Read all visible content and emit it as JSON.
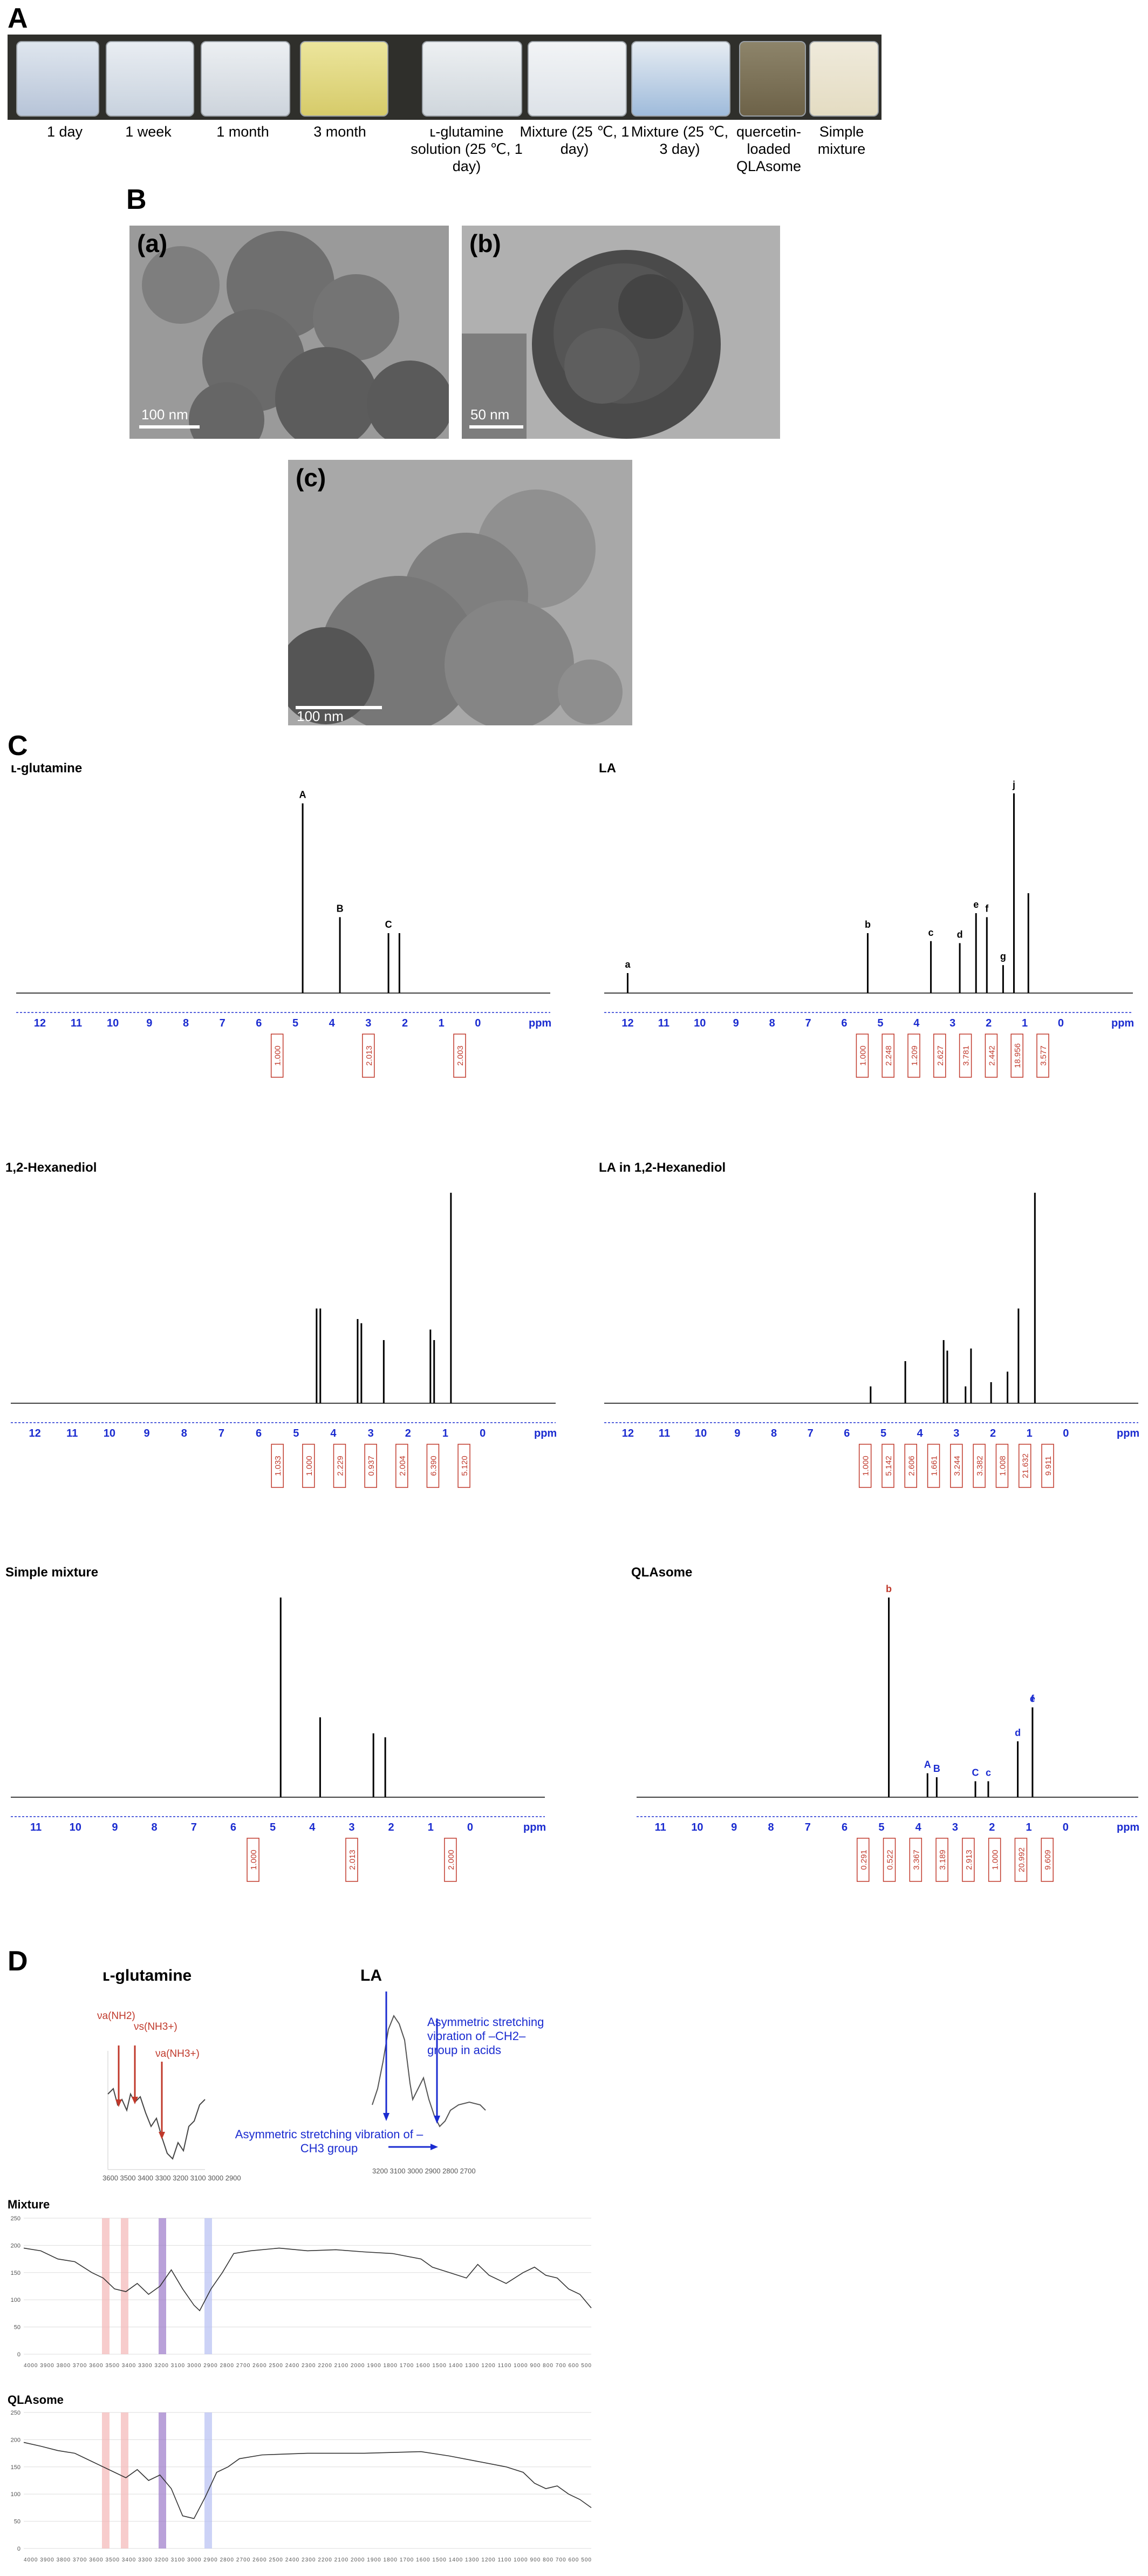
{
  "panelA": {
    "letter": "A",
    "vials": [
      {
        "label": "1 day",
        "liquid": "#b7c4d8",
        "top": "#dfe6ee"
      },
      {
        "label": "1 week",
        "liquid": "#c8d2de",
        "top": "#e9edf2"
      },
      {
        "label": "1 month",
        "liquid": "#cdd4dc",
        "top": "#eceff2"
      },
      {
        "label": "3 month",
        "liquid": "#d6cb6a",
        "top": "#ece59c"
      },
      {
        "label": "ʟ-glutamine solution (25 ℃, 1 day)",
        "liquid": "#cfd6dc",
        "top": "#edf0f2"
      },
      {
        "label": "Mixture (25 ℃, 1 day)",
        "liquid": "#dde2e8",
        "top": "#f2f4f6"
      },
      {
        "label": "Mixture (25 ℃, 3 day)",
        "liquid": "#9fbbdb",
        "top": "#e6ecf2"
      },
      {
        "label": "quercetin-loaded QLAsome",
        "liquid": "#6d6248",
        "top": "#8d846a"
      },
      {
        "label": "Simple mixture",
        "liquid": "#e4dcc2",
        "top": "#efeadb"
      }
    ]
  },
  "panelB": {
    "letter": "B",
    "images": [
      {
        "label": "(a)",
        "scale": "100 nm"
      },
      {
        "label": "(b)",
        "scale": "50 nm"
      },
      {
        "label": "(c)",
        "scale": "100 nm"
      }
    ]
  },
  "panelC": {
    "letter": "C",
    "ppm_label": "ppm",
    "spectra": [
      {
        "title": "ʟ-glutamine",
        "ticks": [
          "12",
          "11",
          "10",
          "9",
          "8",
          "7",
          "6",
          "5",
          "4",
          "3",
          "2",
          "1",
          "0"
        ],
        "integrals": [
          "1.000",
          "2.013",
          "2.003"
        ],
        "peak_letters": [
          "A",
          "B",
          "C"
        ]
      },
      {
        "title": "LA",
        "ticks": [
          "12",
          "11",
          "10",
          "9",
          "8",
          "7",
          "6",
          "5",
          "4",
          "3",
          "2",
          "1",
          "0"
        ],
        "integrals": [
          "1.000",
          "2.248",
          "1.209",
          "2.627",
          "3.781",
          "2.442",
          "18.956",
          "3.577"
        ],
        "peak_letters": [
          "a",
          "b",
          "c",
          "d",
          "e",
          "f",
          "g",
          "j"
        ]
      },
      {
        "title": "1,2-Hexanediol",
        "ticks": [
          "12",
          "11",
          "10",
          "9",
          "8",
          "7",
          "6",
          "5",
          "4",
          "3",
          "2",
          "1",
          "0"
        ],
        "integrals": [
          "1.033",
          "1.000",
          "2.229",
          "0.937",
          "2.004",
          "6.390",
          "5.120"
        ],
        "peak_letters": []
      },
      {
        "title": "LA in 1,2-Hexanediol",
        "ticks": [
          "12",
          "11",
          "10",
          "9",
          "8",
          "7",
          "6",
          "5",
          "4",
          "3",
          "2",
          "1",
          "0"
        ],
        "integrals": [
          "1.000",
          "5.142",
          "2.606",
          "1.661",
          "3.244",
          "3.382",
          "1.008",
          "21.632",
          "9.911"
        ],
        "peak_letters": []
      },
      {
        "title": "Simple mixture",
        "ticks": [
          "11",
          "10",
          "9",
          "8",
          "7",
          "6",
          "5",
          "4",
          "3",
          "2",
          "1",
          "0"
        ],
        "integrals": [
          "1.000",
          "2.013",
          "2.000"
        ],
        "peak_letters": []
      },
      {
        "title": "QLAsome",
        "ticks": [
          "11",
          "10",
          "9",
          "8",
          "7",
          "6",
          "5",
          "4",
          "3",
          "2",
          "1",
          "0"
        ],
        "integrals": [
          "0.291",
          "0.522",
          "3.367",
          "3.189",
          "2.913",
          "1.000",
          "20.992",
          "9.609"
        ],
        "peak_letters": [
          "b",
          "A",
          "B",
          "C",
          "c",
          "d",
          "e",
          "f"
        ]
      }
    ]
  },
  "panelD": {
    "letter": "D",
    "glutamine": {
      "title": "ʟ-glutamine",
      "labels": [
        "νa(NH2)",
        "νs(NH3+)",
        "νa(NH3+)"
      ],
      "axis": "3600 3500 3400 3300 3200 3100 3000 2900"
    },
    "la": {
      "title": "LA",
      "annot1": "Asymmetric stretching vibration of –CH2– group in acids",
      "annot2": "Asymmetric stretching vibration of –CH3 group",
      "axis": "3200 3100 3000 2900 2800 2700"
    },
    "mixture": {
      "title": "Mixture",
      "yticks": [
        "250",
        "200",
        "150",
        "100",
        "50",
        "0"
      ],
      "xaxis": "4000 3900 3800 3700 3600 3500 3400 3300 3200 3100 3000 2900 2800 2700 2600 2500 2400 2300 2200 2100 2000 1900 1800 1700 1600 1500 1400 1300 1200 1100 1000 900 800 700 600 500"
    },
    "qlasome": {
      "title": "QLAsome",
      "yticks": [
        "250",
        "200",
        "150",
        "100",
        "50",
        "0"
      ],
      "xaxis": "4000 3900 3800 3700 3600 3500 3400 3300 3200 3100 3000 2900 2800 2700 2600 2500 2400 2300 2200 2100 2000 1900 1800 1700 1600 1500 1400 1300 1200 1100 1000 900 800 700 600 500"
    }
  }
}
